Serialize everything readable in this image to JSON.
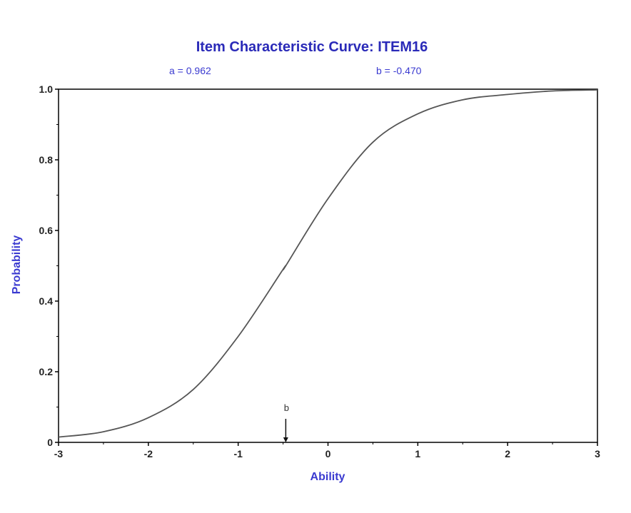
{
  "chart_data": {
    "type": "line",
    "title": "Item Characteristic Curve: ITEM16",
    "parameters": {
      "a_label": "a =  0.962",
      "b_label": "b = -0.470",
      "a": 0.962,
      "b": -0.47
    },
    "xlabel": "Ability",
    "ylabel": "Probability",
    "xlim": [
      -3,
      3
    ],
    "ylim": [
      0,
      1
    ],
    "x_ticks": [
      -3,
      -2,
      -1,
      0,
      1,
      2,
      3
    ],
    "x_tick_labels": [
      "-3",
      "-2",
      "-1",
      "0",
      "1",
      "2",
      "3"
    ],
    "y_ticks": [
      0,
      0.2,
      0.4,
      0.6,
      0.8,
      1.0
    ],
    "y_tick_labels": [
      "0",
      "0.2",
      "0.4",
      "0.6",
      "0.8",
      "1.0"
    ],
    "series": [
      {
        "x": [
          -3,
          -2.5,
          -2,
          -1.5,
          -1,
          -0.5,
          -0.47,
          0,
          0.5,
          1,
          1.5,
          2,
          2.5,
          3
        ],
        "y": [
          0.015,
          0.03,
          0.07,
          0.15,
          0.3,
          0.49,
          0.5,
          0.69,
          0.85,
          0.93,
          0.97,
          0.985,
          0.995,
          0.998
        ]
      }
    ],
    "annotations": [
      {
        "text": "b",
        "x": -0.47
      }
    ],
    "grid": false,
    "colors": {
      "title": "#2a2ab8",
      "labels": "#3a3ad0",
      "curve": "#555555",
      "axes": "#000000"
    }
  }
}
